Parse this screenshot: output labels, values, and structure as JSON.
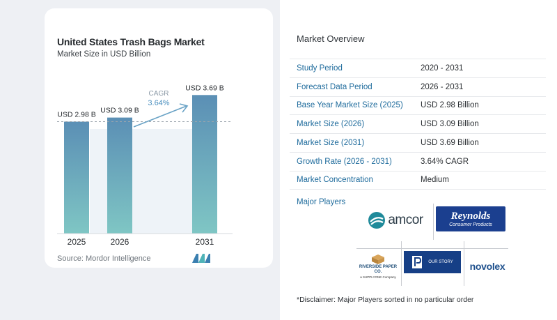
{
  "chart_data": {
    "type": "bar",
    "title": "United States Trash Bags Market",
    "subtitle": "Market Size in USD Billion",
    "categories": [
      "2025",
      "2026",
      "2031"
    ],
    "values": [
      2.98,
      3.09,
      3.69
    ],
    "data_labels": [
      "USD 2.98 B",
      "USD 3.09 B",
      "USD 3.69 B"
    ],
    "ylim": [
      0,
      3.9
    ],
    "reference_line_value": 2.98,
    "cagr_label": "CAGR",
    "cagr_value": "3.64%",
    "grid": false,
    "bar_color_top": "#5b8fb5",
    "bar_color_bottom": "#7fc6c4"
  },
  "source": "Source:  Mordor Intelligence",
  "overview": {
    "title": "Market Overview",
    "rows": [
      {
        "label": "Study Period",
        "value": "2020 - 2031"
      },
      {
        "label": "Forecast Data Period",
        "value": "2026 - 2031"
      },
      {
        "label": "Base Year Market Size (2025)",
        "value": "USD 2.98 Billion"
      },
      {
        "label": "Market Size (2026)",
        "value": "USD 3.09 Billion"
      },
      {
        "label": "Market Size (2031)",
        "value": "USD 3.69 Billion"
      },
      {
        "label": "Growth Rate (2026 - 2031)",
        "value": "3.64% CAGR"
      },
      {
        "label": "Market Concentration",
        "value": "Medium"
      }
    ]
  },
  "major_players": {
    "title": "Major Players",
    "logos": [
      {
        "name": "amcor",
        "text": "amcor"
      },
      {
        "name": "reynolds",
        "text": "Reynolds",
        "subtext": "Consumer Products"
      },
      {
        "name": "riverside",
        "text": "RIVERSIDE PAPER CO.",
        "subtext": "a SUPPLYONE Company"
      },
      {
        "name": "our-story",
        "text": "OUR STORY"
      },
      {
        "name": "novolex",
        "text": "novolex"
      }
    ]
  },
  "disclaimer": "*Disclaimer: Major Players sorted in no particular order"
}
